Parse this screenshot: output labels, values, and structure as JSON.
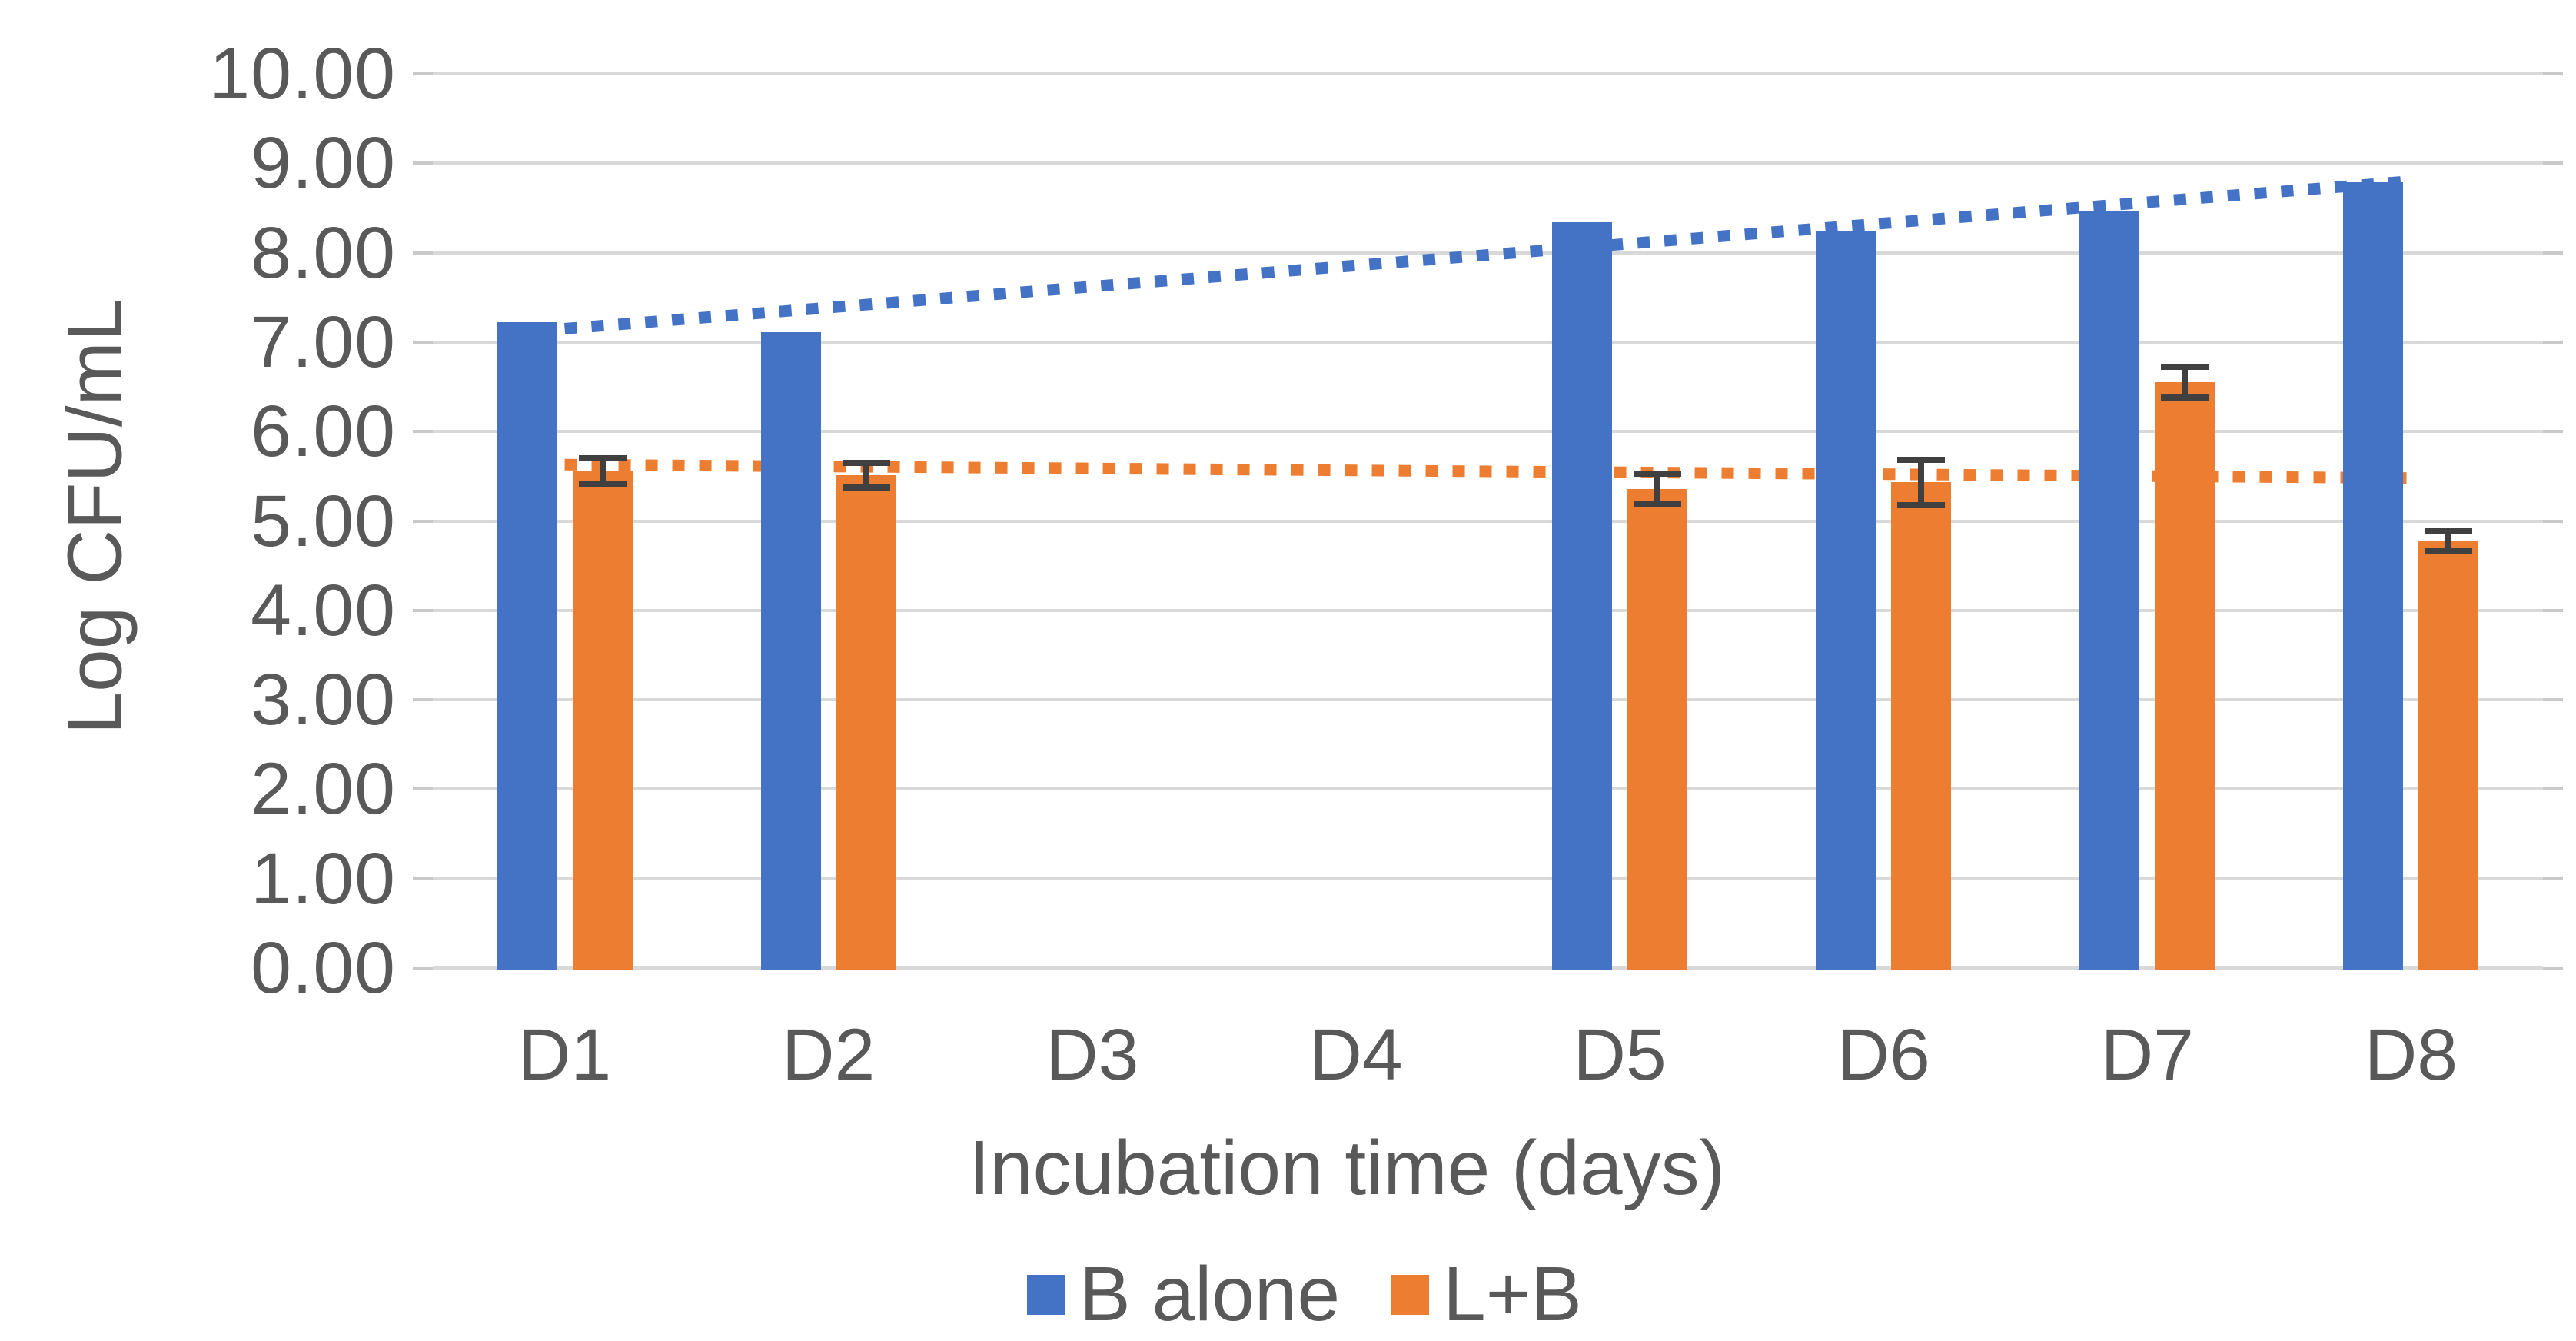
{
  "chart_data": {
    "type": "bar",
    "title": "",
    "xlabel": "Incubation time (days)",
    "ylabel": "Log CFU/mL",
    "categories": [
      "D1",
      "D2",
      "D3",
      "D4",
      "D5",
      "D6",
      "D7",
      "D8"
    ],
    "series": [
      {
        "name": "B alone",
        "color": "#4472C4",
        "values": [
          7.22,
          7.11,
          null,
          null,
          8.34,
          8.25,
          8.47,
          8.79
        ]
      },
      {
        "name": "L+B",
        "color": "#ED7D31",
        "values": [
          5.56,
          5.51,
          null,
          null,
          5.36,
          5.43,
          6.55,
          4.77
        ],
        "error_bars": [
          0.14,
          0.14,
          null,
          null,
          0.17,
          0.25,
          0.17,
          0.11
        ]
      }
    ],
    "trendlines": [
      {
        "series": "B alone",
        "color": "#4472C4",
        "style": "dotted",
        "start_value": 7.15,
        "end_value": 8.8
      },
      {
        "series": "L+B",
        "color": "#ED7D31",
        "style": "dotted",
        "start_value": 5.63,
        "end_value": 5.48
      }
    ],
    "ylim": [
      0,
      10
    ],
    "ytick_step": 1,
    "ytick_labels": [
      "0.00",
      "1.00",
      "2.00",
      "3.00",
      "4.00",
      "5.00",
      "6.00",
      "7.00",
      "8.00",
      "9.00",
      "10.00"
    ],
    "grid": true,
    "legend_position": "bottom"
  },
  "colors": {
    "gridline": "#D9D9D9",
    "tick": "#C9C9C9",
    "text": "#595959",
    "error_bar": "#404040",
    "background": "#FFFFFF"
  }
}
